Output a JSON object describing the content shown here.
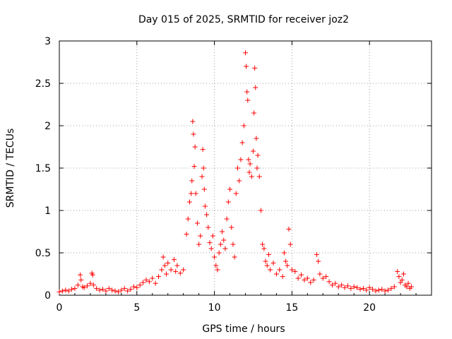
{
  "chart_data": {
    "type": "scatter",
    "title": "Day 015 of 2025, SRMTID for receiver joz2",
    "xlabel": "GPS time / hours",
    "ylabel": "SRMTID / TECUs",
    "xlim": [
      0,
      24
    ],
    "ylim": [
      0,
      3
    ],
    "xticks": [
      0,
      5,
      10,
      15,
      20
    ],
    "yticks": [
      0,
      0.5,
      1,
      1.5,
      2,
      2.5,
      3
    ],
    "xtick_labels": [
      "0",
      "5",
      "10",
      "15",
      "20"
    ],
    "ytick_labels": [
      "0",
      "0.5",
      "1",
      "1.5",
      "2",
      "2.5",
      "3"
    ],
    "grid": true,
    "marker": "plus",
    "color": "#ff0000",
    "series": [
      {
        "name": "SRMTID",
        "x": [
          0.0,
          0.2,
          0.4,
          0.6,
          0.8,
          1.0,
          1.2,
          1.35,
          1.4,
          1.5,
          1.6,
          1.8,
          2.0,
          2.1,
          2.15,
          2.2,
          2.4,
          2.6,
          2.8,
          3.0,
          3.2,
          3.4,
          3.6,
          3.8,
          4.0,
          4.2,
          4.4,
          4.6,
          4.8,
          5.0,
          5.2,
          5.4,
          5.6,
          5.8,
          6.0,
          6.2,
          6.4,
          6.6,
          6.7,
          6.8,
          6.9,
          7.0,
          7.2,
          7.4,
          7.5,
          7.6,
          7.8,
          8.0,
          8.2,
          8.3,
          8.4,
          8.5,
          8.55,
          8.6,
          8.65,
          8.7,
          8.75,
          8.8,
          8.9,
          9.0,
          9.1,
          9.2,
          9.25,
          9.3,
          9.35,
          9.4,
          9.5,
          9.6,
          9.7,
          9.8,
          9.9,
          10.0,
          10.1,
          10.2,
          10.3,
          10.4,
          10.5,
          10.6,
          10.7,
          10.8,
          10.9,
          11.0,
          11.1,
          11.2,
          11.3,
          11.4,
          11.5,
          11.6,
          11.7,
          11.8,
          11.9,
          12.0,
          12.05,
          12.1,
          12.15,
          12.2,
          12.25,
          12.3,
          12.4,
          12.5,
          12.55,
          12.6,
          12.65,
          12.7,
          12.75,
          12.8,
          12.9,
          13.0,
          13.1,
          13.2,
          13.3,
          13.4,
          13.5,
          13.6,
          13.8,
          14.0,
          14.2,
          14.4,
          14.5,
          14.6,
          14.7,
          14.8,
          14.9,
          15.0,
          15.2,
          15.4,
          15.6,
          15.8,
          16.0,
          16.2,
          16.4,
          16.6,
          16.7,
          16.8,
          17.0,
          17.2,
          17.4,
          17.6,
          17.8,
          18.0,
          18.2,
          18.4,
          18.6,
          18.8,
          19.0,
          19.2,
          19.4,
          19.6,
          19.8,
          20.0,
          20.2,
          20.4,
          20.6,
          20.8,
          21.0,
          21.2,
          21.4,
          21.6,
          21.8,
          21.9,
          22.0,
          22.1,
          22.2,
          22.3,
          22.4,
          22.5,
          22.6,
          22.7
        ],
        "y": [
          0.04,
          0.05,
          0.06,
          0.05,
          0.07,
          0.08,
          0.12,
          0.24,
          0.18,
          0.1,
          0.09,
          0.11,
          0.14,
          0.26,
          0.24,
          0.12,
          0.08,
          0.06,
          0.07,
          0.05,
          0.08,
          0.06,
          0.05,
          0.04,
          0.06,
          0.08,
          0.05,
          0.07,
          0.1,
          0.09,
          0.12,
          0.15,
          0.18,
          0.16,
          0.2,
          0.14,
          0.22,
          0.3,
          0.45,
          0.35,
          0.25,
          0.38,
          0.3,
          0.42,
          0.28,
          0.35,
          0.26,
          0.3,
          0.72,
          0.9,
          1.1,
          1.2,
          1.35,
          2.05,
          1.9,
          1.52,
          1.75,
          1.2,
          0.85,
          0.6,
          0.7,
          1.4,
          1.72,
          1.5,
          1.25,
          1.05,
          0.95,
          0.8,
          0.62,
          0.55,
          0.7,
          0.45,
          0.35,
          0.3,
          0.5,
          0.6,
          0.75,
          0.65,
          0.55,
          0.9,
          1.1,
          1.25,
          0.8,
          0.6,
          0.45,
          1.2,
          1.5,
          1.35,
          1.6,
          1.8,
          2.0,
          2.86,
          2.7,
          2.4,
          2.3,
          1.6,
          1.45,
          1.55,
          1.4,
          1.7,
          2.15,
          2.68,
          2.45,
          1.85,
          1.5,
          1.65,
          1.4,
          1.0,
          0.6,
          0.55,
          0.4,
          0.35,
          0.48,
          0.3,
          0.38,
          0.25,
          0.3,
          0.22,
          0.5,
          0.4,
          0.35,
          0.78,
          0.6,
          0.3,
          0.28,
          0.2,
          0.24,
          0.18,
          0.2,
          0.15,
          0.18,
          0.48,
          0.4,
          0.25,
          0.2,
          0.22,
          0.16,
          0.12,
          0.14,
          0.1,
          0.12,
          0.09,
          0.11,
          0.08,
          0.1,
          0.09,
          0.07,
          0.08,
          0.06,
          0.09,
          0.07,
          0.05,
          0.06,
          0.07,
          0.05,
          0.06,
          0.08,
          0.1,
          0.28,
          0.22,
          0.15,
          0.18,
          0.25,
          0.12,
          0.1,
          0.14,
          0.08,
          0.1
        ]
      }
    ]
  }
}
